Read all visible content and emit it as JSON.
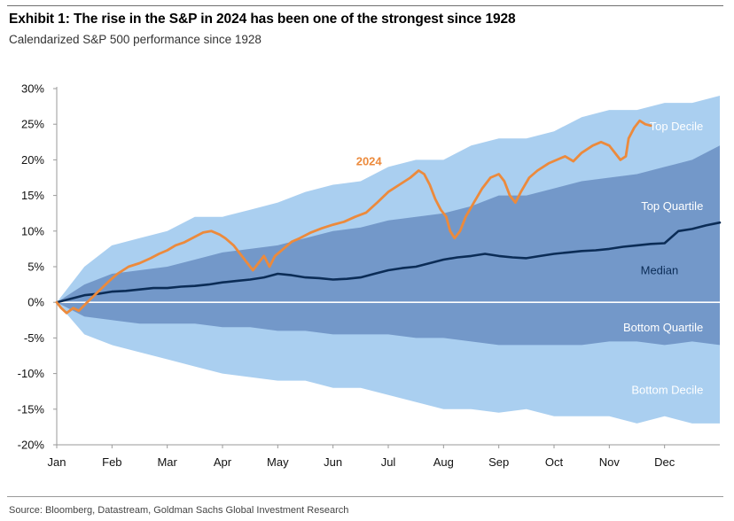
{
  "header": {
    "title": "Exhibit 1: The rise in the S&P in 2024 has been one of the strongest since 1928",
    "subtitle": "Calendarized S&P 500 performance since 1928"
  },
  "footer": {
    "source": "Source: Bloomberg, Datastream, Goldman Sachs Global Investment Research"
  },
  "colors": {
    "decile_band": "#aacff0",
    "quartile_band": "#7398c9",
    "median_line": "#0b2c56",
    "line_2024": "#ec8a3c",
    "zero_line": "#ffffff",
    "band_label_light": "#ffffff",
    "band_label_dark": "#0b2c56"
  },
  "chart_data": {
    "type": "area",
    "x_unit": "month_index",
    "x_ticks": [
      {
        "v": 0,
        "label": "Jan"
      },
      {
        "v": 1,
        "label": "Feb"
      },
      {
        "v": 2,
        "label": "Mar"
      },
      {
        "v": 3,
        "label": "Apr"
      },
      {
        "v": 4,
        "label": "May"
      },
      {
        "v": 5,
        "label": "Jun"
      },
      {
        "v": 6,
        "label": "Jul"
      },
      {
        "v": 7,
        "label": "Aug"
      },
      {
        "v": 8,
        "label": "Sep"
      },
      {
        "v": 9,
        "label": "Oct"
      },
      {
        "v": 10,
        "label": "Nov"
      },
      {
        "v": 11,
        "label": "Dec"
      }
    ],
    "y_ticks": [
      {
        "v": 30,
        "label": "30%"
      },
      {
        "v": 25,
        "label": "25%"
      },
      {
        "v": 20,
        "label": "20%"
      },
      {
        "v": 15,
        "label": "15%"
      },
      {
        "v": 10,
        "label": "10%"
      },
      {
        "v": 5,
        "label": "5%"
      },
      {
        "v": 0,
        "label": "0%"
      },
      {
        "v": -5,
        "label": "-5%"
      },
      {
        "v": -10,
        "label": "-10%"
      },
      {
        "v": -15,
        "label": "-15%"
      },
      {
        "v": -20,
        "label": "-20%"
      }
    ],
    "xlim": [
      0,
      12
    ],
    "ylim": [
      -20,
      30
    ],
    "bands": [
      {
        "name": "Decile band",
        "upper": [
          [
            0,
            0
          ],
          [
            0.5,
            5
          ],
          [
            1,
            8
          ],
          [
            1.5,
            9
          ],
          [
            2,
            10
          ],
          [
            2.5,
            12
          ],
          [
            3,
            12
          ],
          [
            3.5,
            13
          ],
          [
            4,
            14
          ],
          [
            4.5,
            15.5
          ],
          [
            5,
            16.5
          ],
          [
            5.5,
            17
          ],
          [
            6,
            19
          ],
          [
            6.5,
            20
          ],
          [
            7,
            20
          ],
          [
            7.5,
            22
          ],
          [
            8,
            23
          ],
          [
            8.5,
            23
          ],
          [
            9,
            24
          ],
          [
            9.5,
            26
          ],
          [
            10,
            27
          ],
          [
            10.5,
            27
          ],
          [
            11,
            28
          ],
          [
            11.5,
            28
          ],
          [
            12,
            29
          ]
        ],
        "lower": [
          [
            0,
            0
          ],
          [
            0.5,
            -4.5
          ],
          [
            1,
            -6
          ],
          [
            1.5,
            -7
          ],
          [
            2,
            -8
          ],
          [
            2.5,
            -9
          ],
          [
            3,
            -10
          ],
          [
            3.5,
            -10.5
          ],
          [
            4,
            -11
          ],
          [
            4.5,
            -11
          ],
          [
            5,
            -12
          ],
          [
            5.5,
            -12
          ],
          [
            6,
            -13
          ],
          [
            6.5,
            -14
          ],
          [
            7,
            -15
          ],
          [
            7.5,
            -15
          ],
          [
            8,
            -15.5
          ],
          [
            8.5,
            -15
          ],
          [
            9,
            -16
          ],
          [
            9.5,
            -16
          ],
          [
            10,
            -16
          ],
          [
            10.5,
            -17
          ],
          [
            11,
            -16
          ],
          [
            11.5,
            -17
          ],
          [
            12,
            -17
          ]
        ]
      },
      {
        "name": "Quartile band",
        "upper": [
          [
            0,
            0
          ],
          [
            0.5,
            2.5
          ],
          [
            1,
            4
          ],
          [
            1.5,
            4.5
          ],
          [
            2,
            5
          ],
          [
            2.5,
            6
          ],
          [
            3,
            7
          ],
          [
            3.5,
            7.5
          ],
          [
            4,
            8
          ],
          [
            4.5,
            9
          ],
          [
            5,
            10
          ],
          [
            5.5,
            10.5
          ],
          [
            6,
            11.5
          ],
          [
            6.5,
            12
          ],
          [
            7,
            12.5
          ],
          [
            7.5,
            13.5
          ],
          [
            8,
            15
          ],
          [
            8.5,
            15
          ],
          [
            9,
            16
          ],
          [
            9.5,
            17
          ],
          [
            10,
            17.5
          ],
          [
            10.5,
            18
          ],
          [
            11,
            19
          ],
          [
            11.5,
            20
          ],
          [
            12,
            22
          ]
        ],
        "lower": [
          [
            0,
            0
          ],
          [
            0.5,
            -2
          ],
          [
            1,
            -2.5
          ],
          [
            1.5,
            -3
          ],
          [
            2,
            -3
          ],
          [
            2.5,
            -3
          ],
          [
            3,
            -3.5
          ],
          [
            3.5,
            -3.5
          ],
          [
            4,
            -4
          ],
          [
            4.5,
            -4
          ],
          [
            5,
            -4.5
          ],
          [
            5.5,
            -4.5
          ],
          [
            6,
            -4.5
          ],
          [
            6.5,
            -5
          ],
          [
            7,
            -5
          ],
          [
            7.5,
            -5.5
          ],
          [
            8,
            -6
          ],
          [
            8.5,
            -6
          ],
          [
            9,
            -6
          ],
          [
            9.5,
            -6
          ],
          [
            10,
            -5.5
          ],
          [
            10.5,
            -5.5
          ],
          [
            11,
            -6
          ],
          [
            11.5,
            -5.5
          ],
          [
            12,
            -6
          ]
        ]
      }
    ],
    "series": [
      {
        "name": "Median",
        "points": [
          [
            0,
            0
          ],
          [
            0.25,
            0.5
          ],
          [
            0.5,
            1
          ],
          [
            0.75,
            1.2
          ],
          [
            1,
            1.5
          ],
          [
            1.25,
            1.6
          ],
          [
            1.5,
            1.8
          ],
          [
            1.75,
            2
          ],
          [
            2,
            2
          ],
          [
            2.25,
            2.2
          ],
          [
            2.5,
            2.3
          ],
          [
            2.75,
            2.5
          ],
          [
            3,
            2.8
          ],
          [
            3.25,
            3
          ],
          [
            3.5,
            3.2
          ],
          [
            3.75,
            3.5
          ],
          [
            4,
            4
          ],
          [
            4.25,
            3.8
          ],
          [
            4.5,
            3.5
          ],
          [
            4.75,
            3.4
          ],
          [
            5,
            3.2
          ],
          [
            5.25,
            3.3
          ],
          [
            5.5,
            3.5
          ],
          [
            5.75,
            4
          ],
          [
            6,
            4.5
          ],
          [
            6.25,
            4.8
          ],
          [
            6.5,
            5
          ],
          [
            6.75,
            5.5
          ],
          [
            7,
            6
          ],
          [
            7.25,
            6.3
          ],
          [
            7.5,
            6.5
          ],
          [
            7.75,
            6.8
          ],
          [
            8,
            6.5
          ],
          [
            8.25,
            6.3
          ],
          [
            8.5,
            6.2
          ],
          [
            8.75,
            6.5
          ],
          [
            9,
            6.8
          ],
          [
            9.25,
            7
          ],
          [
            9.5,
            7.2
          ],
          [
            9.75,
            7.3
          ],
          [
            10,
            7.5
          ],
          [
            10.25,
            7.8
          ],
          [
            10.5,
            8
          ],
          [
            10.75,
            8.2
          ],
          [
            11,
            8.3
          ],
          [
            11.25,
            10
          ],
          [
            11.5,
            10.3
          ],
          [
            11.75,
            10.8
          ],
          [
            12,
            11.2
          ]
        ]
      },
      {
        "name": "2024",
        "points": [
          [
            0,
            0
          ],
          [
            0.08,
            -0.8
          ],
          [
            0.18,
            -1.5
          ],
          [
            0.3,
            -0.8
          ],
          [
            0.4,
            -1.2
          ],
          [
            0.55,
            0
          ],
          [
            0.75,
            1.5
          ],
          [
            0.95,
            3
          ],
          [
            1.1,
            4
          ],
          [
            1.3,
            5
          ],
          [
            1.5,
            5.5
          ],
          [
            1.7,
            6.2
          ],
          [
            1.85,
            6.8
          ],
          [
            2,
            7.3
          ],
          [
            2.15,
            8
          ],
          [
            2.3,
            8.4
          ],
          [
            2.5,
            9.2
          ],
          [
            2.65,
            9.8
          ],
          [
            2.8,
            10
          ],
          [
            2.95,
            9.5
          ],
          [
            3.05,
            9
          ],
          [
            3.2,
            8
          ],
          [
            3.3,
            7
          ],
          [
            3.45,
            5.5
          ],
          [
            3.55,
            4.5
          ],
          [
            3.65,
            5.5
          ],
          [
            3.75,
            6.5
          ],
          [
            3.85,
            5
          ],
          [
            3.95,
            6.5
          ],
          [
            4.1,
            7.5
          ],
          [
            4.25,
            8.5
          ],
          [
            4.4,
            9
          ],
          [
            4.6,
            9.8
          ],
          [
            4.8,
            10.4
          ],
          [
            5,
            10.9
          ],
          [
            5.2,
            11.3
          ],
          [
            5.4,
            12
          ],
          [
            5.6,
            12.6
          ],
          [
            5.8,
            14
          ],
          [
            6,
            15.5
          ],
          [
            6.2,
            16.5
          ],
          [
            6.4,
            17.5
          ],
          [
            6.55,
            18.5
          ],
          [
            6.65,
            18
          ],
          [
            6.75,
            16.5
          ],
          [
            6.85,
            14.5
          ],
          [
            6.95,
            13
          ],
          [
            7.05,
            12
          ],
          [
            7.12,
            10
          ],
          [
            7.2,
            9
          ],
          [
            7.3,
            10
          ],
          [
            7.4,
            12
          ],
          [
            7.55,
            14
          ],
          [
            7.7,
            16
          ],
          [
            7.85,
            17.5
          ],
          [
            8,
            18
          ],
          [
            8.1,
            17
          ],
          [
            8.2,
            15
          ],
          [
            8.3,
            14
          ],
          [
            8.4,
            15.5
          ],
          [
            8.55,
            17.5
          ],
          [
            8.7,
            18.5
          ],
          [
            8.9,
            19.5
          ],
          [
            9.05,
            20
          ],
          [
            9.2,
            20.5
          ],
          [
            9.35,
            19.8
          ],
          [
            9.5,
            21
          ],
          [
            9.7,
            22
          ],
          [
            9.85,
            22.5
          ],
          [
            10,
            22
          ],
          [
            10.1,
            21
          ],
          [
            10.2,
            20
          ],
          [
            10.3,
            20.5
          ],
          [
            10.35,
            23
          ],
          [
            10.45,
            24.5
          ],
          [
            10.55,
            25.5
          ],
          [
            10.65,
            25
          ],
          [
            10.75,
            24.8
          ]
        ]
      }
    ],
    "labels": [
      {
        "id": "top_decile",
        "text": "Top Decile",
        "x": 11.7,
        "y": 24.7,
        "anchor": "end",
        "tone": "light"
      },
      {
        "id": "top_quartile",
        "text": "Top Quartile",
        "x": 11.7,
        "y": 13.5,
        "anchor": "end",
        "tone": "light"
      },
      {
        "id": "median",
        "text": "Median",
        "x": 11.25,
        "y": 4.5,
        "anchor": "end",
        "tone": "dark"
      },
      {
        "id": "bottom_quartile",
        "text": "Bottom Quartile",
        "x": 11.7,
        "y": -3.5,
        "anchor": "end",
        "tone": "light"
      },
      {
        "id": "bottom_decile",
        "text": "Bottom Decile",
        "x": 11.7,
        "y": -12.3,
        "anchor": "end",
        "tone": "light"
      },
      {
        "id": "label_2024",
        "text": "2024",
        "x": 5.65,
        "y": 19.8,
        "anchor": "middle",
        "tone": "orange"
      }
    ]
  }
}
